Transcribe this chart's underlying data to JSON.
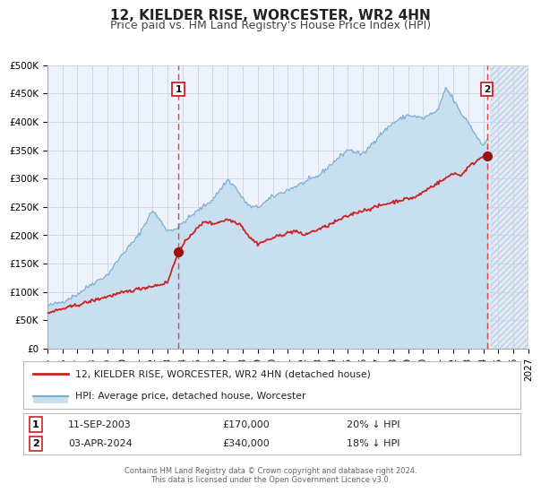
{
  "title": "12, KIELDER RISE, WORCESTER, WR2 4HN",
  "subtitle": "Price paid vs. HM Land Registry's House Price Index (HPI)",
  "title_fontsize": 11,
  "subtitle_fontsize": 9,
  "background_color": "#ffffff",
  "plot_bg_color": "#eef2fa",
  "grid_color": "#c8d4e8",
  "hpi_color": "#7aafd4",
  "hpi_fill_color": "#c8dff0",
  "property_color": "#cc2222",
  "marker_color": "#991111",
  "vline_color": "#dd4444",
  "ylim": [
    0,
    500000
  ],
  "yticks": [
    0,
    50000,
    100000,
    150000,
    200000,
    250000,
    300000,
    350000,
    400000,
    450000,
    500000
  ],
  "ytick_labels": [
    "£0",
    "£50K",
    "£100K",
    "£150K",
    "£200K",
    "£250K",
    "£300K",
    "£350K",
    "£400K",
    "£450K",
    "£500K"
  ],
  "xlim_start": 1995.0,
  "xlim_end": 2027.0,
  "xticks": [
    1995,
    1996,
    1997,
    1998,
    1999,
    2000,
    2001,
    2002,
    2003,
    2004,
    2005,
    2006,
    2007,
    2008,
    2009,
    2010,
    2011,
    2012,
    2013,
    2014,
    2015,
    2016,
    2017,
    2018,
    2019,
    2020,
    2021,
    2022,
    2023,
    2024,
    2025,
    2026,
    2027
  ],
  "sale1_x": 2003.71,
  "sale1_y": 170000,
  "sale1_label": "1",
  "sale1_date": "11-SEP-2003",
  "sale1_price": "£170,000",
  "sale1_hpi": "20% ↓ HPI",
  "sale2_x": 2024.25,
  "sale2_y": 340000,
  "sale2_label": "2",
  "sale2_date": "03-APR-2024",
  "sale2_price": "£340,000",
  "sale2_hpi": "18% ↓ HPI",
  "legend_property_label": "12, KIELDER RISE, WORCESTER, WR2 4HN (detached house)",
  "legend_hpi_label": "HPI: Average price, detached house, Worcester",
  "footer_text": "Contains HM Land Registry data © Crown copyright and database right 2024.\nThis data is licensed under the Open Government Licence v3.0."
}
